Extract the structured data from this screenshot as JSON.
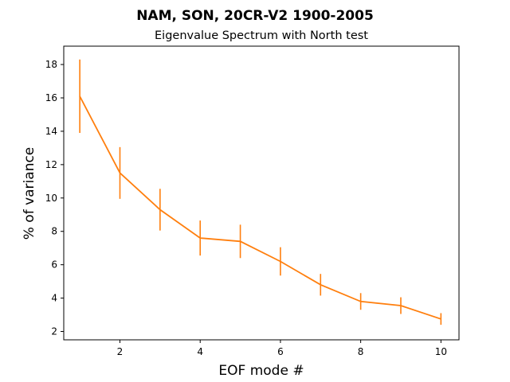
{
  "chart_data": {
    "type": "line",
    "title": "NAM, SON, 20CR-V2 1900-2005",
    "subtitle": "Eigenvalue Spectrum with North test",
    "xlabel": "EOF mode #",
    "ylabel": "% of variance",
    "xlim": [
      0.6,
      10.45
    ],
    "ylim": [
      1.5,
      19.1
    ],
    "xticks": [
      2,
      4,
      6,
      8,
      10
    ],
    "yticks": [
      2,
      4,
      6,
      8,
      10,
      12,
      14,
      16,
      18
    ],
    "grid": false,
    "legend": "none",
    "colors": {
      "line": "#ff7f0e",
      "errorbar": "#ff7f0e",
      "axes": "#000000",
      "background": "#ffffff"
    },
    "series": [
      {
        "x": [
          1,
          2,
          3,
          4,
          5,
          6,
          7,
          8,
          9,
          10
        ],
        "values": [
          16.1,
          11.5,
          9.3,
          7.6,
          7.4,
          6.2,
          4.8,
          3.8,
          3.55,
          2.75
        ],
        "error": [
          2.2,
          1.55,
          1.25,
          1.05,
          1.0,
          0.85,
          0.65,
          0.5,
          0.5,
          0.35
        ]
      }
    ]
  }
}
